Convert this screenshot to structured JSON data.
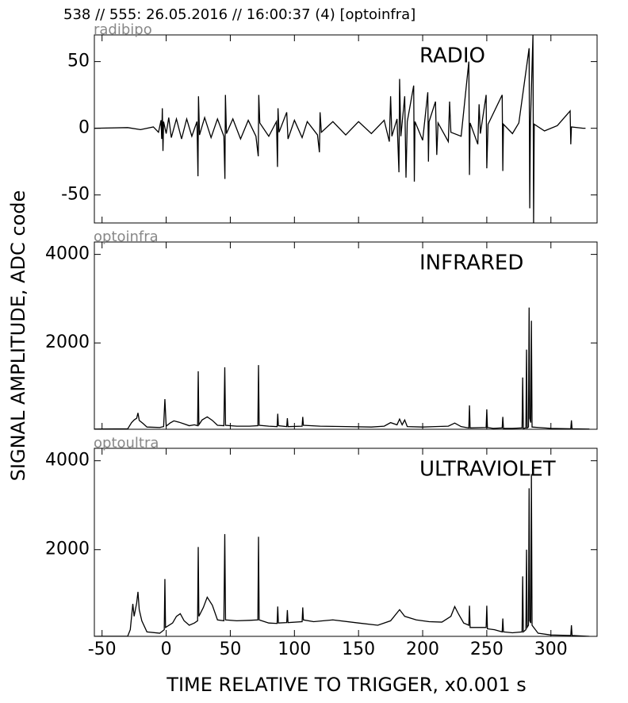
{
  "title": "538 // 555:   26.05.2016 // 16:00:37 (4)  [optoinfra]",
  "ylabel": "SIGNAL AMPLITUDE,  ADC code",
  "xlabel": "TIME RELATIVE TO TRIGGER,   x0.001 s",
  "chart_data": [
    {
      "type": "line",
      "title": "RADIO",
      "subtitle": "radibipo",
      "x": [
        -56,
        -30,
        -20,
        -10,
        -6,
        -4,
        -3.5,
        -3,
        -2.5,
        -2,
        0,
        2,
        4,
        8,
        12,
        16,
        20,
        24,
        24.8,
        25.2,
        26,
        30,
        35,
        40,
        45,
        45.8,
        46.2,
        47,
        52,
        58,
        64,
        70,
        71.8,
        72.2,
        73,
        80,
        86,
        86.8,
        87.2,
        88,
        94,
        95,
        100,
        106,
        110,
        118,
        119.5,
        120,
        121,
        130,
        140,
        150,
        160,
        170,
        174,
        175,
        176,
        180,
        181.5,
        182,
        183,
        186,
        187,
        188,
        193,
        193.5,
        194,
        200,
        204,
        204.5,
        205,
        210,
        211,
        212,
        220,
        221,
        222,
        230,
        236,
        236.5,
        237,
        243,
        244,
        245,
        249.5,
        250,
        251,
        262,
        262.5,
        263,
        270,
        275,
        283,
        283.5,
        284,
        286,
        286.5,
        287,
        295,
        305,
        315,
        315.5,
        316,
        325,
        327
      ],
      "series": [
        {
          "color": "#000000",
          "values": [
            0,
            0.5,
            -1,
            1,
            -3,
            6,
            -8,
            15,
            -17,
            5,
            -4,
            8,
            -7,
            7,
            -8,
            7,
            -6,
            5,
            -36,
            24,
            -5,
            8,
            -7,
            7,
            -6,
            -38,
            25,
            -4,
            7,
            -8,
            6,
            -6,
            -21,
            25,
            4,
            -6,
            5,
            -29,
            15,
            -3,
            12,
            -8,
            6,
            -7,
            5,
            -5,
            -18,
            12,
            -3,
            5,
            -5,
            5,
            -4,
            6,
            -10,
            24,
            -6,
            7,
            -33,
            37,
            -6,
            24,
            -37,
            5,
            32,
            -40,
            5,
            -9,
            27,
            -25,
            5,
            20,
            -20,
            4,
            -10,
            20,
            -3,
            -6,
            50,
            -35,
            4,
            -12,
            18,
            -4,
            25,
            -30,
            3,
            25,
            -32,
            3,
            -4,
            4,
            60,
            -60,
            2,
            70,
            -71,
            3,
            -2,
            2,
            13,
            -12,
            1,
            0,
            0
          ]
        }
      ],
      "xlim": [
        -56,
        336
      ],
      "ylim": [
        -71,
        70
      ],
      "yticks": [
        -50,
        0,
        50
      ]
    },
    {
      "type": "line",
      "title": "INFRARED",
      "subtitle": "optoinfra",
      "x": [
        -56,
        -30,
        -27,
        -25,
        -23,
        -22,
        -21,
        -18,
        -15,
        -5,
        -2,
        -1,
        0,
        3,
        6,
        10,
        14,
        18,
        22,
        24.5,
        25,
        25.5,
        28,
        32,
        36,
        40,
        45,
        45.7,
        46.3,
        55,
        65,
        71.5,
        72,
        72.5,
        80,
        86.5,
        87,
        87.5,
        94,
        94.5,
        95,
        106,
        106.5,
        107,
        120,
        140,
        160,
        170,
        175,
        180,
        182,
        184,
        186,
        188,
        200,
        210,
        220,
        225,
        230,
        236,
        236.5,
        237,
        249.5,
        250,
        250.5,
        255,
        262,
        262.5,
        263,
        270,
        277.5,
        278,
        278.5,
        280.5,
        281,
        281.5,
        282.5,
        283,
        283.5,
        284.3,
        284.8,
        285.3,
        290,
        300,
        315.5,
        316,
        316.5,
        330
      ],
      "series": [
        {
          "color": "#000000",
          "values": [
            55,
            60,
            200,
            260,
            300,
            420,
            250,
            180,
            100,
            90,
            110,
            730,
            120,
            190,
            240,
            210,
            170,
            130,
            150,
            130,
            1360,
            150,
            260,
            330,
            250,
            140,
            130,
            1450,
            140,
            120,
            120,
            130,
            1500,
            140,
            120,
            110,
            400,
            130,
            110,
            300,
            110,
            120,
            330,
            140,
            120,
            110,
            100,
            120,
            200,
            150,
            280,
            150,
            260,
            110,
            100,
            110,
            120,
            190,
            110,
            80,
            590,
            80,
            90,
            500,
            90,
            70,
            80,
            330,
            70,
            70,
            80,
            1220,
            70,
            80,
            1850,
            80,
            100,
            2800,
            300,
            200,
            2500,
            100,
            90,
            70,
            60,
            250,
            60,
            55
          ]
        }
      ],
      "xlim": [
        -56,
        336
      ],
      "ylim": [
        50,
        4280
      ],
      "yticks": [
        2000,
        4000
      ]
    },
    {
      "type": "line",
      "title": "ULTRAVIOLET",
      "subtitle": "optoultra",
      "x": [
        -56,
        -30,
        -28,
        -26,
        -25,
        -23,
        -22,
        -21,
        -19,
        -15,
        -5,
        -1.5,
        -1,
        -0.5,
        5,
        8,
        11,
        14,
        18,
        22,
        24.5,
        25,
        25.5,
        29,
        32,
        36,
        40,
        45,
        45.7,
        46.3,
        55,
        65,
        71.5,
        72,
        72.5,
        80,
        86.5,
        87,
        87.5,
        94,
        94.5,
        95,
        106,
        106.5,
        107,
        115,
        130,
        150,
        165,
        175,
        182,
        186,
        195,
        205,
        215,
        222,
        225,
        228,
        232,
        236,
        236.5,
        237,
        245,
        249.5,
        250,
        250.5,
        256,
        262,
        262.5,
        263,
        270,
        277.5,
        278,
        278.5,
        280.5,
        281,
        281.5,
        282.5,
        283,
        283.5,
        284.3,
        284.8,
        285.3,
        290,
        300,
        315.5,
        316,
        316.5,
        330
      ],
      "series": [
        {
          "color": "#000000",
          "values": [
            50,
            55,
            200,
            780,
            500,
            800,
            1050,
            650,
            400,
            150,
            120,
            200,
            1340,
            250,
            350,
            500,
            560,
            400,
            300,
            350,
            400,
            2060,
            500,
            700,
            930,
            750,
            420,
            400,
            2350,
            420,
            400,
            410,
            420,
            2290,
            420,
            350,
            340,
            720,
            350,
            360,
            640,
            360,
            380,
            700,
            420,
            380,
            420,
            350,
            300,
            400,
            650,
            500,
            420,
            380,
            370,
            500,
            720,
            550,
            350,
            300,
            740,
            250,
            250,
            250,
            740,
            220,
            200,
            150,
            450,
            150,
            130,
            150,
            1400,
            150,
            200,
            2000,
            250,
            300,
            3380,
            400,
            350,
            3700,
            300,
            120,
            80,
            70,
            300,
            70,
            50
          ]
        }
      ],
      "xlim": [
        -56,
        336
      ],
      "ylim": [
        50,
        4280
      ],
      "yticks": [
        2000,
        4000
      ],
      "xticks": [
        -50,
        0,
        50,
        100,
        150,
        200,
        250,
        300
      ]
    }
  ]
}
